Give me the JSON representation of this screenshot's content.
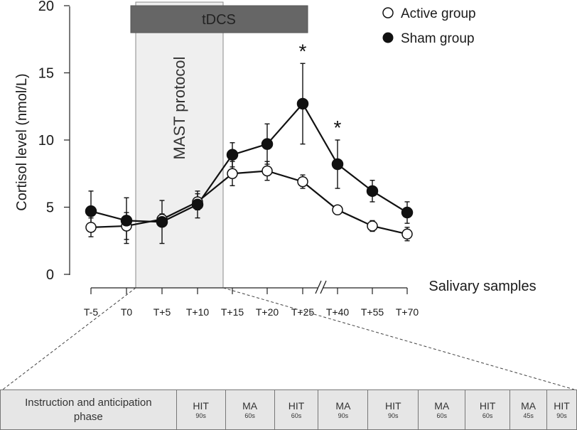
{
  "chart_data": {
    "type": "line",
    "ylabel": "Cortisol level (nmol/L)",
    "xlabel": "Salivary samples",
    "ylim": [
      0,
      20
    ],
    "yticks": [
      0,
      5,
      10,
      15,
      20
    ],
    "categories": [
      "T-5",
      "T0",
      "T+5",
      "T+10",
      "T+15",
      "T+20",
      "T+25",
      "T+40",
      "T+55",
      "T+70"
    ],
    "axis_break_between": [
      "T+25",
      "T+40"
    ],
    "series": [
      {
        "name": "Active group",
        "marker": "open-circle",
        "values": [
          3.5,
          3.6,
          4.1,
          5.4,
          7.5,
          7.7,
          6.9,
          4.8,
          3.6,
          3.0
        ],
        "errors": [
          0.7,
          1.0,
          0.4,
          0.6,
          0.9,
          0.7,
          0.5,
          0.1,
          0.4,
          0.5
        ]
      },
      {
        "name": "Sham group",
        "marker": "filled-circle",
        "values": [
          4.7,
          4.0,
          3.9,
          5.2,
          8.9,
          9.7,
          12.7,
          8.2,
          6.2,
          4.6
        ],
        "errors": [
          1.5,
          1.7,
          1.6,
          1.0,
          0.9,
          1.5,
          3.0,
          1.8,
          0.8,
          0.8
        ]
      }
    ],
    "significance": [
      {
        "category": "T+25",
        "label": "*"
      },
      {
        "category": "T+40",
        "label": "*"
      }
    ],
    "annotations": {
      "protocol_label": "MAST protocol",
      "stim_label": "tDCS"
    },
    "legend_position": "top-right"
  },
  "timeline": [
    {
      "name": "Instruction and anticipation phase",
      "duration": ""
    },
    {
      "name": "HIT",
      "duration": "90s"
    },
    {
      "name": "MA",
      "duration": "60s"
    },
    {
      "name": "HIT",
      "duration": "60s"
    },
    {
      "name": "MA",
      "duration": "90s"
    },
    {
      "name": "HIT",
      "duration": "90s"
    },
    {
      "name": "MA",
      "duration": "60s"
    },
    {
      "name": "HIT",
      "duration": "60s"
    },
    {
      "name": "MA",
      "duration": "45s"
    },
    {
      "name": "HIT",
      "duration": "90s"
    }
  ]
}
